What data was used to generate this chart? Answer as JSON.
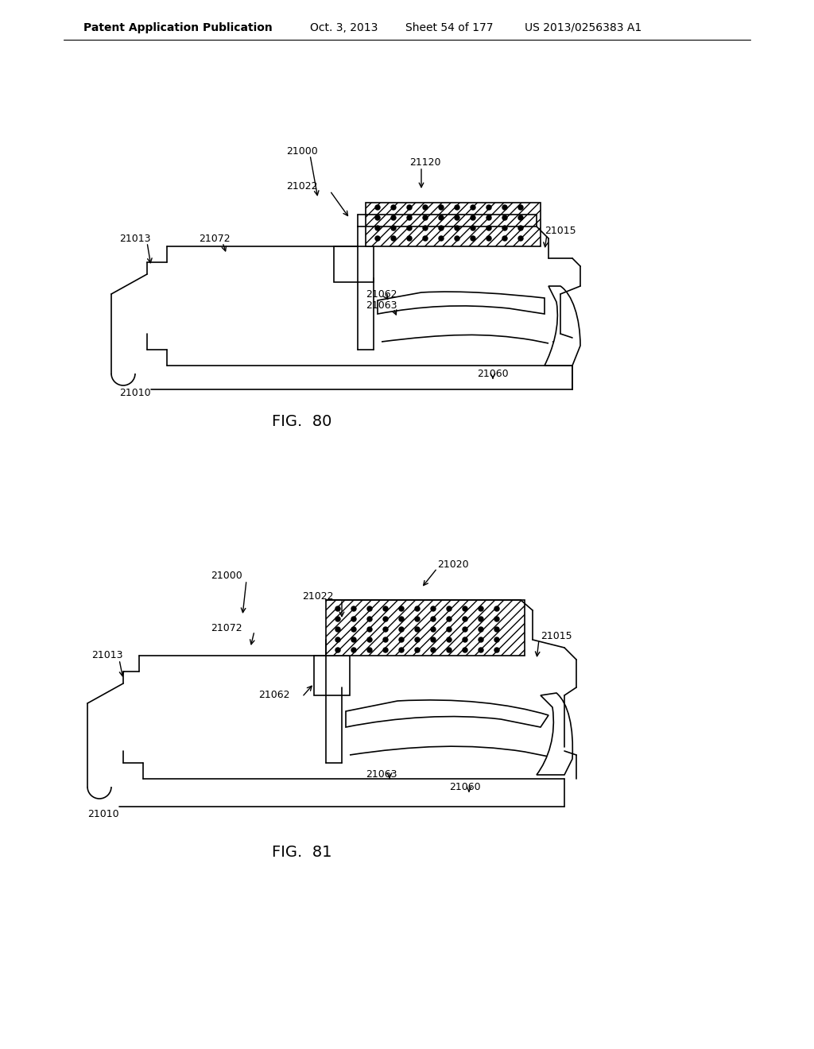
{
  "bg_color": "#ffffff",
  "header_text": "Patent Application Publication",
  "header_date": "Oct. 3, 2013",
  "header_sheet": "Sheet 54 of 177",
  "header_patent": "US 2013/0256383 A1",
  "fig80_label": "FIG.  80",
  "fig81_label": "FIG.  81",
  "header_fontsize": 10,
  "label_fontsize": 9,
  "fig_label_fontsize": 14,
  "line_color": "#000000",
  "hatch_color": "#000000",
  "lw": 1.2
}
